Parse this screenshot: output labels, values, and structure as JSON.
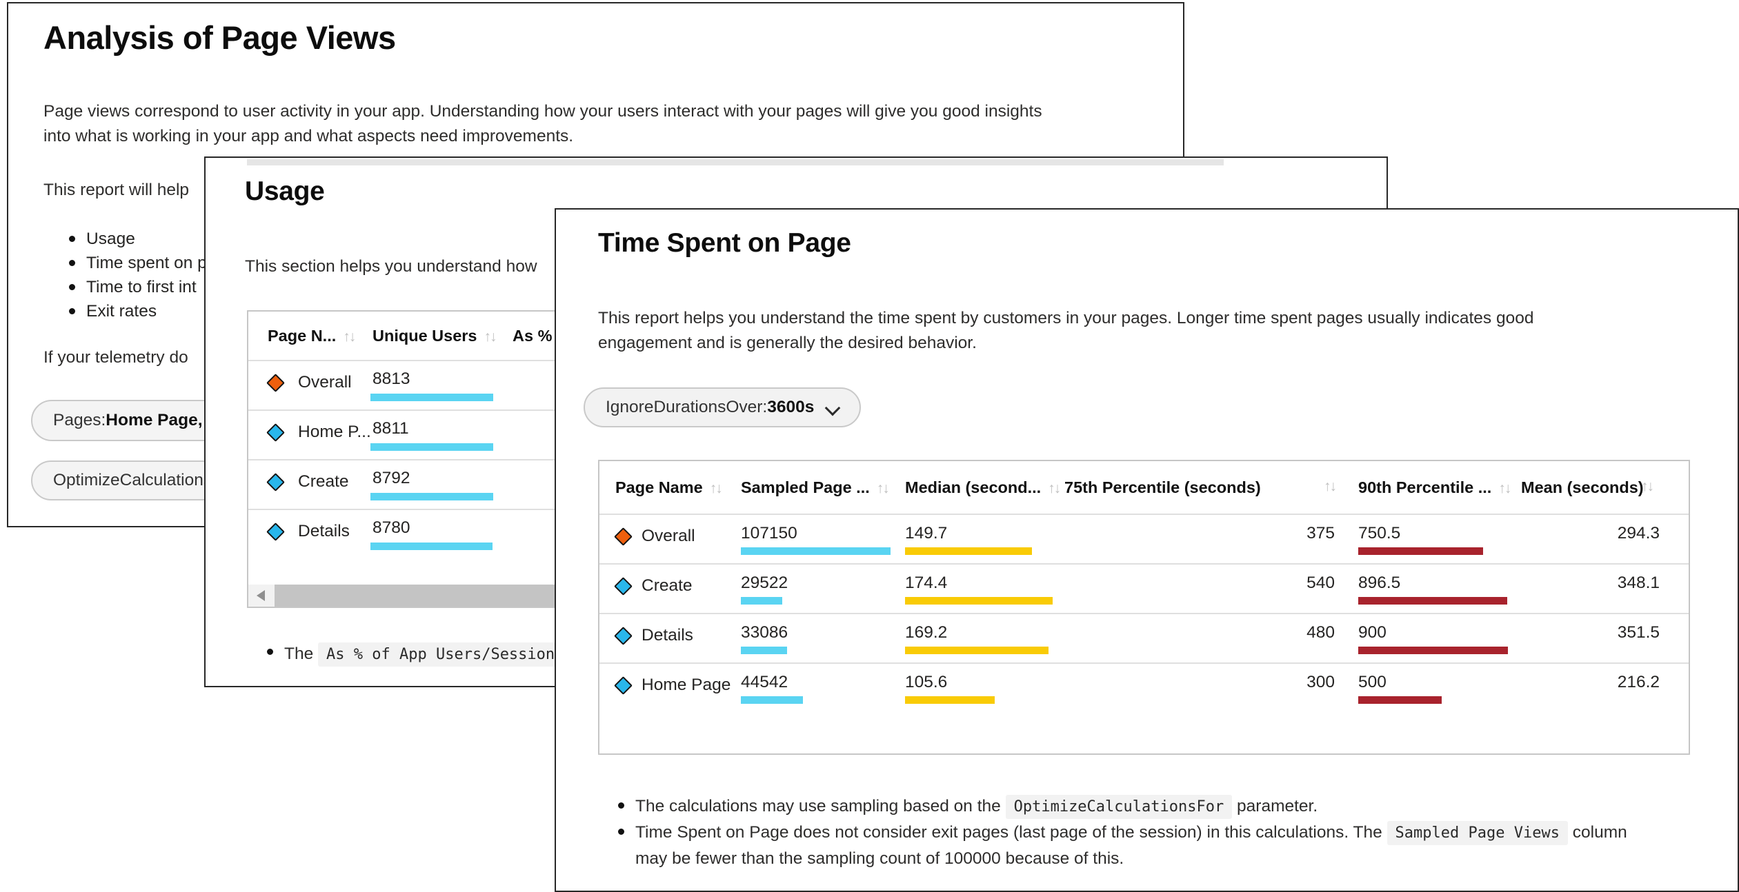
{
  "colors": {
    "cyan_bar": "#5ad4f2",
    "yellow_bar": "#f9cb06",
    "red_bar": "#a8232d",
    "diamond_orange": "#ee5f0d",
    "diamond_blue": "#29b7ec"
  },
  "icons": {
    "sort": "↑↓",
    "chevron_down": "chevron-down",
    "scroll_left_arrow": "left-arrow"
  },
  "panel_overview": {
    "title": "Analysis of Page Views",
    "intro_lines": [
      "Page views correspond to user activity in your app. Understanding how your users interact with your pages will give you good insights",
      "into what is working in your app and what aspects need improvements."
    ],
    "report_line": "This report will help",
    "bullets": [
      "Usage",
      "Time spent on p",
      "Time to first int",
      "Exit rates"
    ],
    "telemetry_line": "If your telemetry do",
    "pills": [
      {
        "label": "Pages: ",
        "value": "Home Page, D"
      },
      {
        "label": "OptimizeCalculations",
        "value": ""
      }
    ]
  },
  "panel_usage": {
    "title": "Usage",
    "description": "This section helps you understand how",
    "table": {
      "headers": [
        "Page N...",
        "Unique Users",
        "As % of"
      ],
      "bar_max": "8813",
      "rows": [
        {
          "marker": "orange",
          "name": "Overall",
          "unique": "8813"
        },
        {
          "marker": "blue",
          "name": "Home P...",
          "unique": "8811"
        },
        {
          "marker": "blue",
          "name": "Create",
          "unique": "8792"
        },
        {
          "marker": "blue",
          "name": "Details",
          "unique": "8780"
        }
      ]
    },
    "note": {
      "pre": "The ",
      "code": "As % of App Users/Sessions/V"
    }
  },
  "panel_time": {
    "title": "Time Spent on Page",
    "description_lines": [
      "This report helps you understand the time spent by customers in your pages. Longer time spent pages usually indicates good",
      "engagement and is generally the desired behavior."
    ],
    "filter_pill": {
      "label": "IgnoreDurationsOver: ",
      "value": "3600s"
    },
    "table": {
      "headers": [
        "Page Name",
        "Sampled Page ...",
        "Median (second...",
        "75th Percentile (seconds)",
        "90th Percentile ...",
        "Mean (seconds)"
      ],
      "bar_max": {
        "sampled": "107150",
        "median": "174.4",
        "p90": "900"
      },
      "rows": [
        {
          "marker": "orange",
          "name": "Overall",
          "sampled": "107150",
          "median": "149.7",
          "p75": "375",
          "p90": "750.5",
          "mean": "294.3"
        },
        {
          "marker": "blue",
          "name": "Create",
          "sampled": "29522",
          "median": "174.4",
          "p75": "540",
          "p90": "896.5",
          "mean": "348.1"
        },
        {
          "marker": "blue",
          "name": "Details",
          "sampled": "33086",
          "median": "169.2",
          "p75": "480",
          "p90": "900",
          "mean": "351.5"
        },
        {
          "marker": "blue",
          "name": "Home Page",
          "sampled": "44542",
          "median": "105.6",
          "p75": "300",
          "p90": "500",
          "mean": "216.2"
        }
      ]
    },
    "notes": {
      "n1": {
        "pre": "The calculations may use sampling based on the ",
        "code": "OptimizeCalculationsFor",
        "post": " parameter."
      },
      "n2": {
        "pre": "Time Spent on Page does not consider exit pages (last page of the session) in this calculations. The ",
        "code": "Sampled Page Views",
        "post": " column",
        "line2": "may be fewer than the sampling count of 100000 because of this."
      }
    }
  }
}
